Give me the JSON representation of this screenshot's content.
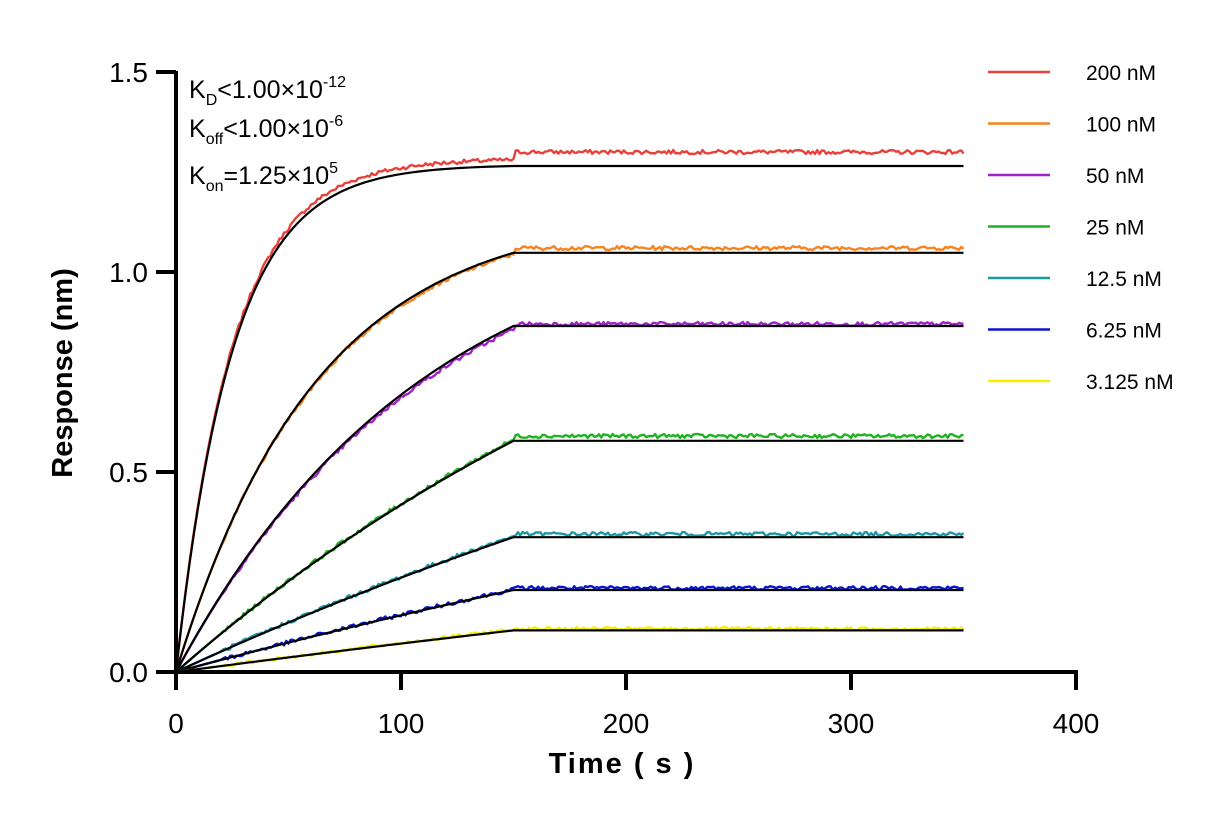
{
  "chart_data": {
    "type": "line",
    "xlabel": "Time ( s )",
    "ylabel": "Response (nm)",
    "xlim": [
      0,
      400
    ],
    "ylim": [
      0,
      1.5
    ],
    "xticks": [
      "0",
      "100",
      "200",
      "300",
      "400"
    ],
    "yticks": [
      "0.0",
      "0.5",
      "1.0",
      "1.5"
    ],
    "xtick_values": [
      0,
      100,
      200,
      300,
      400
    ],
    "ytick_values": [
      0,
      0.5,
      1.0,
      1.5
    ],
    "grid": false,
    "legend_position": "right",
    "association_end": 150,
    "dissociation_end": 350,
    "annotations": {
      "kd": {
        "main": "K",
        "sub": "D",
        "rel": "<1.00×10",
        "exp": "-12"
      },
      "koff": {
        "main": "K",
        "sub": "off",
        "rel": "<1.00×10",
        "exp": "-6"
      },
      "kon": {
        "main": "K",
        "sub": "on",
        "rel": "=1.25×10",
        "exp": "5"
      }
    },
    "series": [
      {
        "name": "200 nM",
        "color": "#e8413c",
        "data_plateau": 1.3,
        "fit_plateau": 1.265,
        "rate": 0.04
      },
      {
        "name": "100 nM",
        "color": "#f5831f",
        "data_plateau": 1.06,
        "fit_plateau": 1.048,
        "rate": 0.016
      },
      {
        "name": "50 nM",
        "color": "#a021c8",
        "data_plateau": 0.87,
        "fit_plateau": 0.865,
        "rate": 0.009
      },
      {
        "name": "25 nM",
        "color": "#1fb31f",
        "data_plateau": 0.59,
        "fit_plateau": 0.578,
        "rate": 0.0035
      },
      {
        "name": "12.5 nM",
        "color": "#1a9aa6",
        "data_plateau": 0.345,
        "fit_plateau": 0.337,
        "rate": 0.002
      },
      {
        "name": "6.25 nM",
        "color": "#0b14d6",
        "data_plateau": 0.21,
        "fit_plateau": 0.205,
        "rate": 0.0015
      },
      {
        "name": "3.125 nM",
        "color": "#f5f000",
        "data_plateau": 0.108,
        "fit_plateau": 0.104,
        "rate": 0.001
      }
    ]
  }
}
